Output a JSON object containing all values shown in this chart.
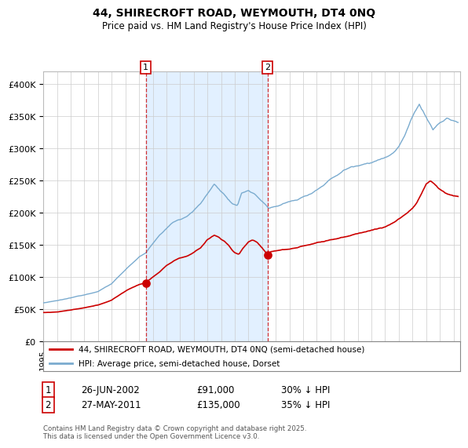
{
  "title": "44, SHIRECROFT ROAD, WEYMOUTH, DT4 0NQ",
  "subtitle": "Price paid vs. HM Land Registry's House Price Index (HPI)",
  "legend_line1": "44, SHIRECROFT ROAD, WEYMOUTH, DT4 0NQ (semi-detached house)",
  "legend_line2": "HPI: Average price, semi-detached house, Dorset",
  "annotation1_date": "26-JUN-2002",
  "annotation1_price": "£91,000",
  "annotation1_hpi": "30% ↓ HPI",
  "annotation2_date": "27-MAY-2011",
  "annotation2_price": "£135,000",
  "annotation2_hpi": "35% ↓ HPI",
  "footer": "Contains HM Land Registry data © Crown copyright and database right 2025.\nThis data is licensed under the Open Government Licence v3.0.",
  "red_color": "#cc0000",
  "blue_color": "#7aabcf",
  "bg_shade_color": "#ddeeff",
  "vline_color": "#cc0000",
  "ylim": [
    0,
    420000
  ],
  "yticks": [
    0,
    50000,
    100000,
    150000,
    200000,
    250000,
    300000,
    350000,
    400000
  ],
  "ytick_labels": [
    "£0",
    "£50K",
    "£100K",
    "£150K",
    "£200K",
    "£250K",
    "£300K",
    "£350K",
    "£400K"
  ],
  "sale1_year": 2002.49,
  "sale1_value_red": 91000,
  "sale2_year": 2011.4,
  "sale2_value_red": 135000,
  "xmin": 1995.0,
  "xmax": 2025.5
}
